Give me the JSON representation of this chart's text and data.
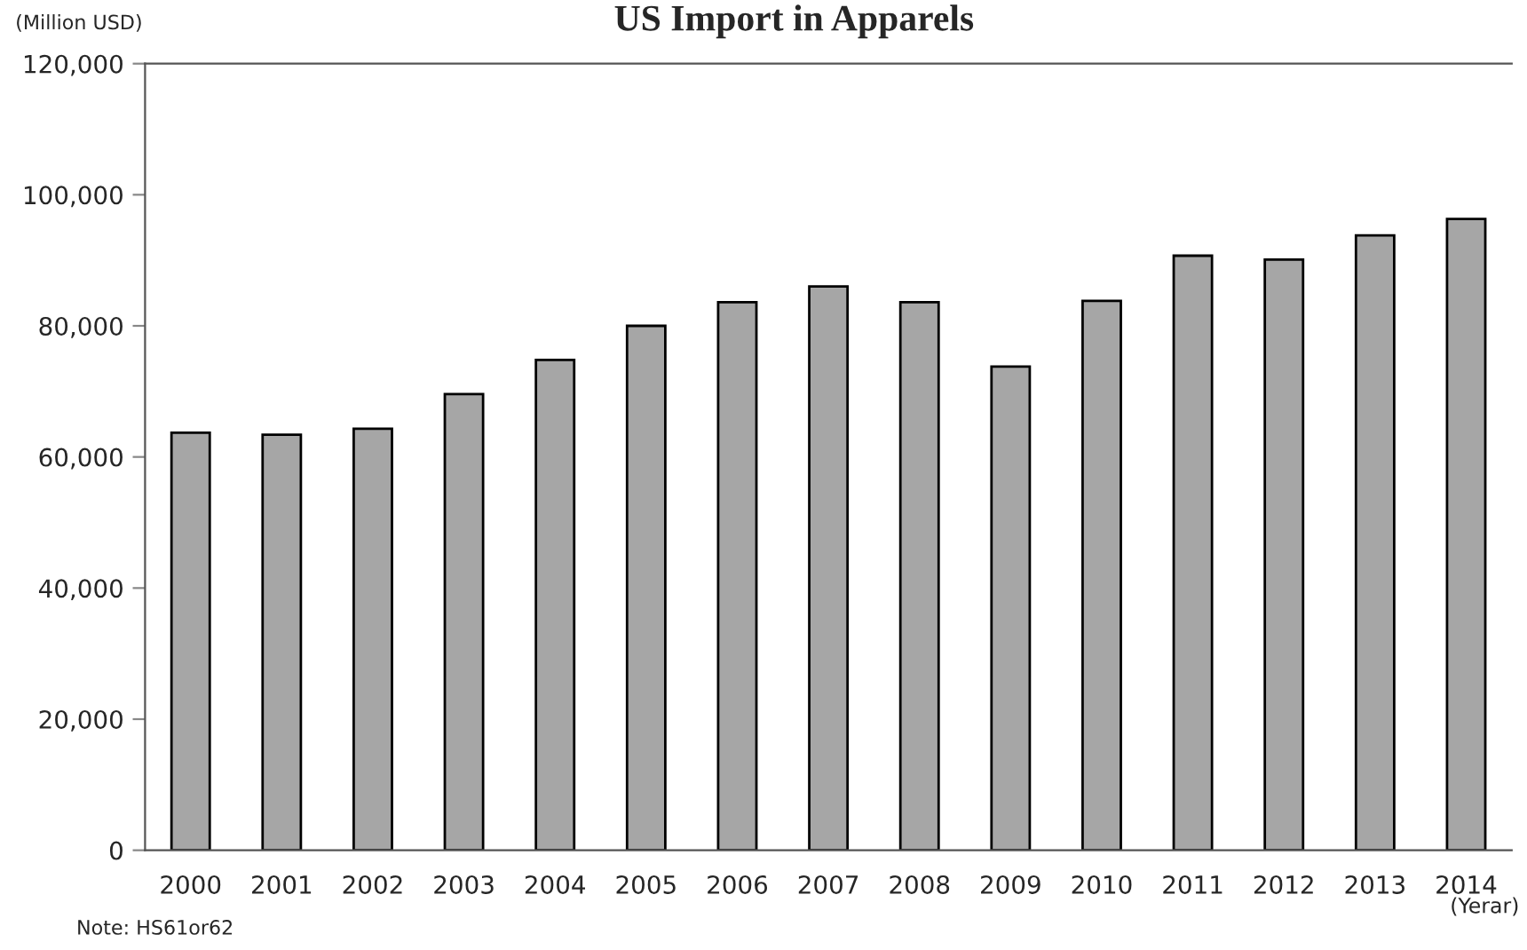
{
  "chart_data": {
    "type": "bar",
    "title": "US Import in Apparels",
    "ylabel": "(Million USD)",
    "xlabel": "(Yerar)",
    "categories": [
      "2000",
      "2001",
      "2002",
      "2003",
      "2004",
      "2005",
      "2006",
      "2007",
      "2008",
      "2009",
      "2010",
      "2011",
      "2012",
      "2013",
      "2014"
    ],
    "values": [
      63700,
      63400,
      64300,
      69600,
      74800,
      80000,
      83600,
      86000,
      83600,
      73800,
      83800,
      90700,
      90100,
      93800,
      96300
    ],
    "color": "#a6a6a6",
    "ylim": [
      0,
      120000
    ],
    "yticks": [
      {
        "value": 0,
        "label": "0"
      },
      {
        "value": 20000,
        "label": "20,000"
      },
      {
        "value": 40000,
        "label": "40,000"
      },
      {
        "value": 60000,
        "label": "60,000"
      },
      {
        "value": 80000,
        "label": "80,000"
      },
      {
        "value": 100000,
        "label": "100,000"
      },
      {
        "value": 120000,
        "label": "120,000"
      }
    ],
    "grid": false,
    "legend": false,
    "annotations": [
      "Note: HS61or62"
    ]
  }
}
